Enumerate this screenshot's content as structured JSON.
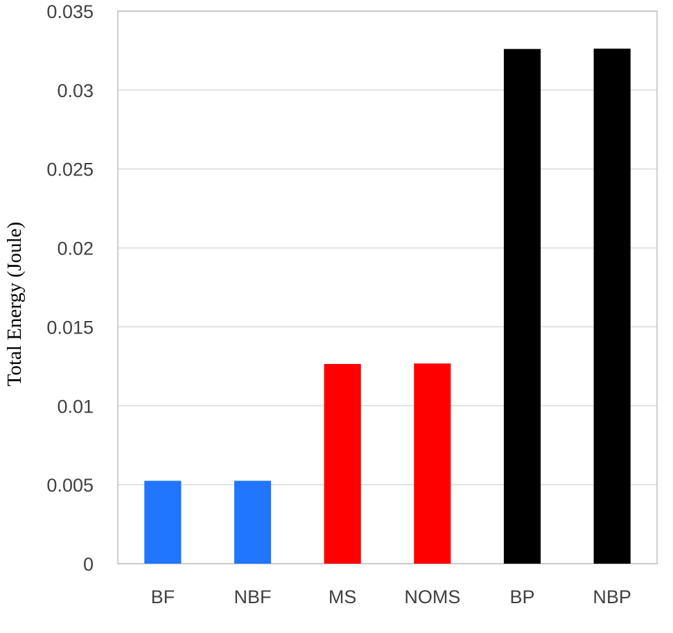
{
  "chart_data": {
    "type": "bar",
    "title": "",
    "xlabel": "",
    "ylabel": "Total Energy (Joule)",
    "categories": [
      "BF",
      "NBF",
      "MS",
      "NOMS",
      "BP",
      "NBP"
    ],
    "values": [
      0.00525,
      0.00525,
      0.01265,
      0.01268,
      0.0326,
      0.03262
    ],
    "colors": [
      "#2176ff",
      "#2176ff",
      "#ff0000",
      "#ff0000",
      "#000000",
      "#000000"
    ],
    "ylim": [
      0,
      0.035
    ],
    "yticks": [
      0,
      0.005,
      0.01,
      0.015,
      0.02,
      0.025,
      0.03,
      0.035
    ],
    "ytick_labels": [
      "0",
      "0.005",
      "0.01",
      "0.015",
      "0.02",
      "0.025",
      "0.03",
      "0.035"
    ],
    "grid": true,
    "legend": "none"
  }
}
